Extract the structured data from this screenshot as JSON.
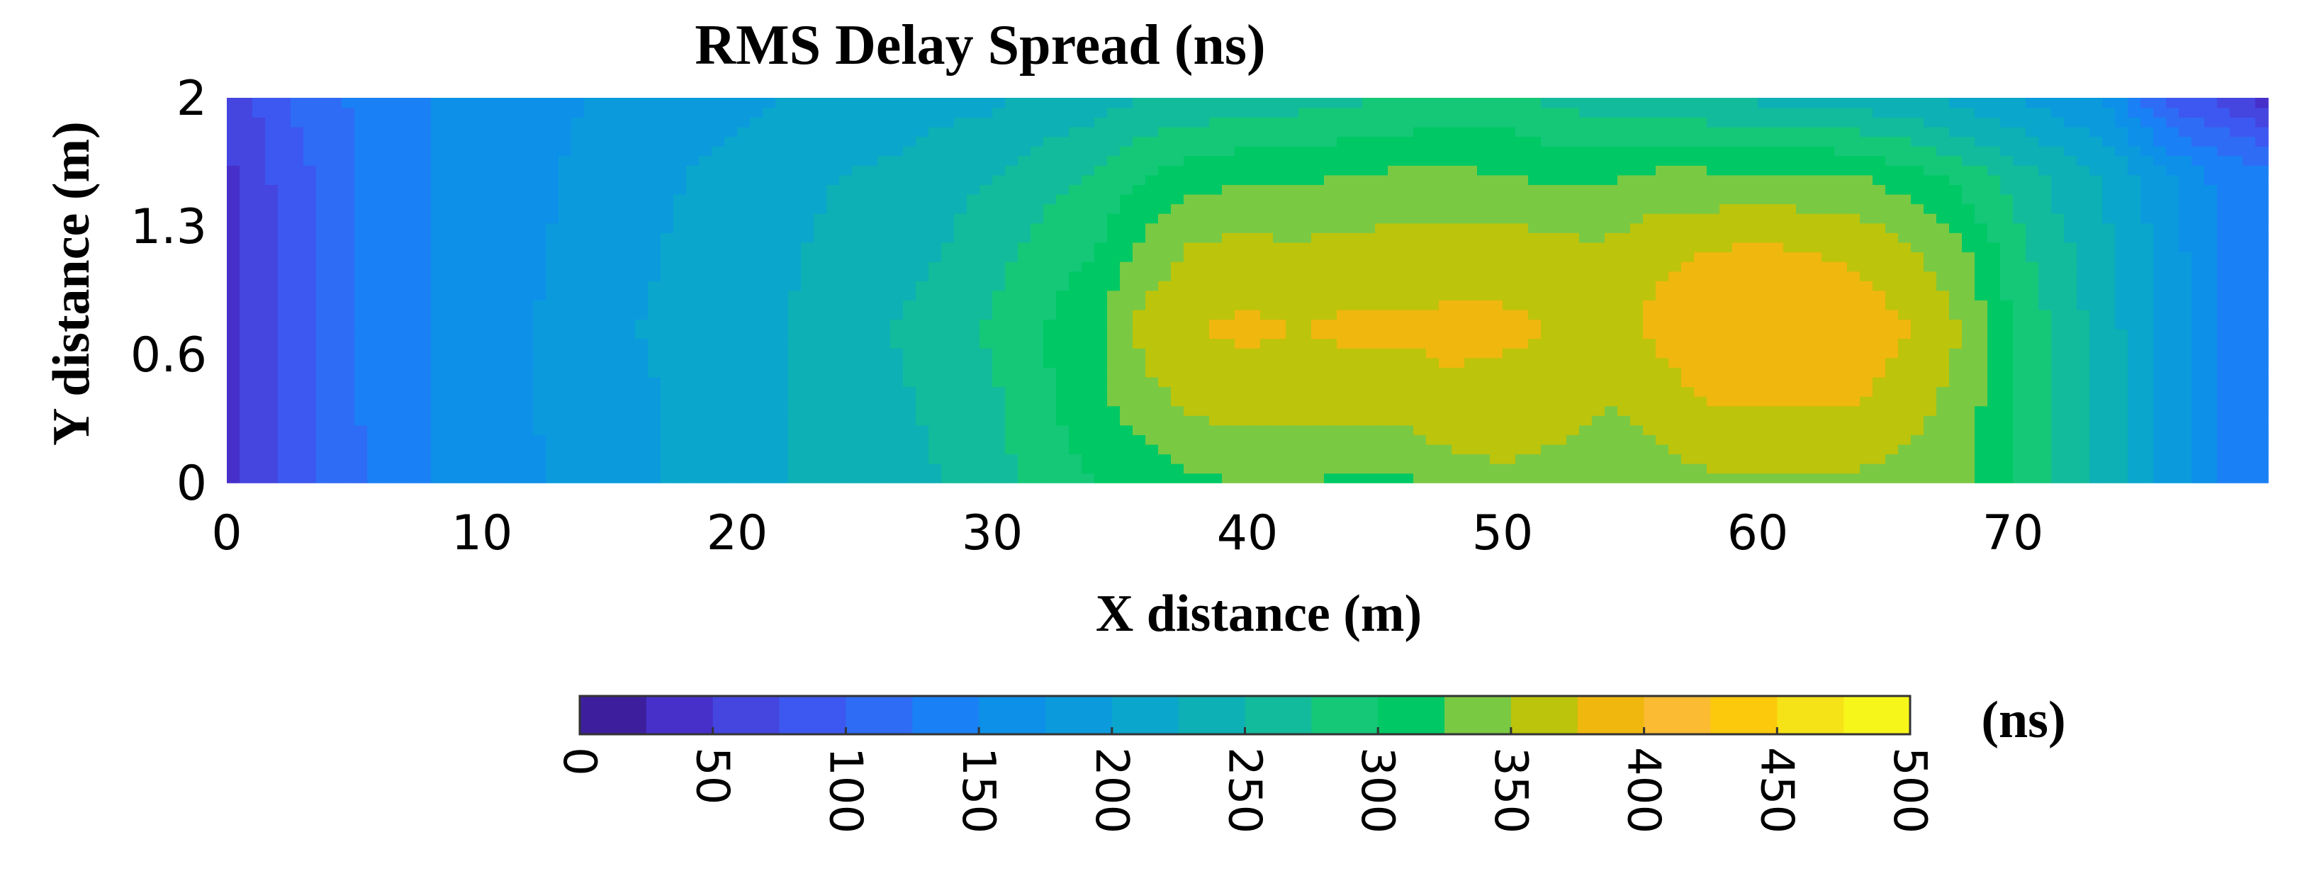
{
  "chart_data": {
    "type": "heatmap",
    "title": "RMS Delay Spread (ns)",
    "xlabel": "X distance (m)",
    "ylabel": "Y distance (m)",
    "xlim": [
      0,
      80
    ],
    "ylim": [
      0,
      2
    ],
    "x_ticks": [
      "0",
      "10",
      "20",
      "30",
      "40",
      "50",
      "60",
      "70"
    ],
    "y_ticks": [
      "0",
      "0.6",
      "1.3",
      "2"
    ],
    "colorbar": {
      "label": "(ns)",
      "range": [
        0,
        500
      ],
      "ticks": [
        "0",
        "50",
        "100",
        "150",
        "200",
        "250",
        "300",
        "350",
        "400",
        "450",
        "500"
      ],
      "levels": 20,
      "colors": [
        "#3d1f9e",
        "#4630c9",
        "#4545e0",
        "#3c58f0",
        "#2f6cf5",
        "#1a80f5",
        "#0d90e8",
        "#0b9bdd",
        "#0aa6cc",
        "#0cb0b5",
        "#12bb9b",
        "#14c878",
        "#00c864",
        "#7ac943",
        "#bcc40b",
        "#f0b70f",
        "#fbbb32",
        "#fcc90c",
        "#f5e217",
        "#f7f61a"
      ],
      "tick_label_rotation": "90deg"
    },
    "x": [
      0,
      2,
      4,
      6,
      8,
      10,
      12,
      14,
      16,
      18,
      20,
      22,
      24,
      26,
      28,
      30,
      32,
      34,
      36,
      38,
      40,
      42,
      44,
      46,
      48,
      50,
      52,
      54,
      56,
      58,
      60,
      62,
      64,
      66,
      68,
      70,
      72,
      74,
      76,
      78,
      80
    ],
    "y": [
      0,
      0.4,
      0.8,
      1.2,
      1.6,
      2.0
    ],
    "z": [
      [
        40,
        75,
        110,
        130,
        150,
        160,
        170,
        185,
        195,
        205,
        215,
        225,
        235,
        240,
        250,
        265,
        285,
        300,
        310,
        320,
        325,
        325,
        320,
        320,
        335,
        345,
        340,
        330,
        335,
        345,
        345,
        345,
        345,
        340,
        330,
        300,
        270,
        235,
        190,
        150,
        140
      ],
      [
        40,
        75,
        110,
        135,
        150,
        165,
        175,
        190,
        195,
        205,
        215,
        225,
        240,
        245,
        255,
        270,
        295,
        315,
        340,
        355,
        360,
        360,
        360,
        360,
        370,
        365,
        360,
        350,
        360,
        375,
        375,
        375,
        375,
        360,
        340,
        300,
        270,
        235,
        190,
        150,
        140
      ],
      [
        40,
        75,
        110,
        135,
        150,
        165,
        175,
        190,
        200,
        205,
        215,
        225,
        245,
        250,
        260,
        280,
        300,
        320,
        360,
        375,
        380,
        375,
        380,
        380,
        380,
        380,
        375,
        365,
        380,
        395,
        400,
        395,
        390,
        375,
        350,
        300,
        265,
        230,
        190,
        150,
        140
      ],
      [
        40,
        75,
        110,
        135,
        150,
        165,
        170,
        185,
        195,
        205,
        215,
        220,
        235,
        240,
        250,
        265,
        285,
        300,
        335,
        355,
        360,
        355,
        360,
        360,
        365,
        365,
        360,
        355,
        370,
        375,
        380,
        375,
        370,
        355,
        330,
        285,
        255,
        225,
        190,
        150,
        140
      ],
      [
        45,
        80,
        110,
        135,
        150,
        165,
        170,
        180,
        190,
        200,
        205,
        215,
        225,
        230,
        240,
        250,
        265,
        275,
        300,
        315,
        320,
        320,
        325,
        330,
        330,
        325,
        320,
        320,
        330,
        330,
        330,
        330,
        325,
        310,
        290,
        265,
        240,
        215,
        180,
        145,
        140
      ],
      [
        50,
        95,
        120,
        135,
        150,
        160,
        165,
        175,
        185,
        190,
        195,
        200,
        205,
        210,
        215,
        220,
        230,
        240,
        250,
        255,
        260,
        265,
        270,
        275,
        285,
        285,
        270,
        260,
        255,
        250,
        245,
        240,
        235,
        230,
        215,
        200,
        185,
        165,
        90,
        70,
        40
      ]
    ]
  }
}
